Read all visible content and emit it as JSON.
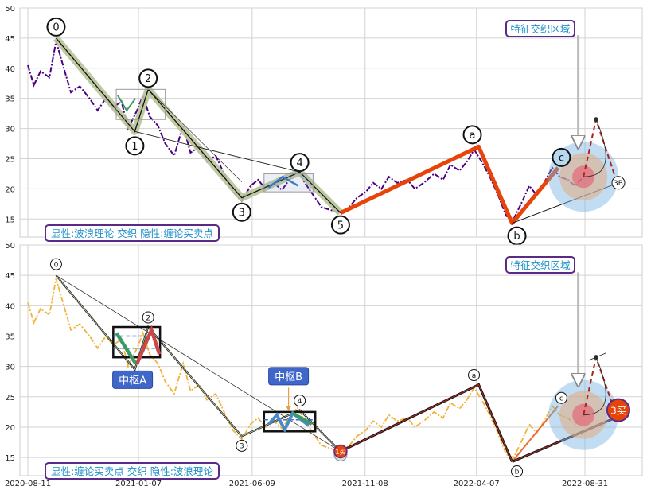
{
  "chart_data": [
    {
      "type": "line",
      "panel": "top",
      "ylim": [
        12,
        50
      ],
      "yticks": [
        15,
        20,
        25,
        30,
        35,
        40,
        45,
        50
      ],
      "xticks": [
        {
          "date": "2020-08-11",
          "label": "2020-08-11"
        },
        {
          "date": "2021-01-07",
          "label": "2021-01-07"
        },
        {
          "date": "2021-06-09",
          "label": "2021-06-09"
        },
        {
          "date": "2021-11-08",
          "label": "2021-11-08"
        },
        {
          "date": "2022-04-07",
          "label": "2022-04-07"
        },
        {
          "date": "2022-08-31",
          "label": "2022-08-31"
        }
      ],
      "xlim": [
        "2020-08-11",
        "2022-11-25"
      ],
      "grid": true,
      "price_series": [
        {
          "date": "2020-08-11",
          "value": 40.5
        },
        {
          "date": "2020-08-19",
          "value": 37.2
        },
        {
          "date": "2020-08-28",
          "value": 39.5
        },
        {
          "date": "2020-09-09",
          "value": 38.5
        },
        {
          "date": "2020-09-18",
          "value": 44.5
        },
        {
          "date": "2020-09-28",
          "value": 40.2
        },
        {
          "date": "2020-10-08",
          "value": 36.0
        },
        {
          "date": "2020-10-20",
          "value": 37.0
        },
        {
          "date": "2020-11-02",
          "value": 35.0
        },
        {
          "date": "2020-11-13",
          "value": 33.0
        },
        {
          "date": "2020-11-24",
          "value": 35.0
        },
        {
          "date": "2020-12-04",
          "value": 33.5
        },
        {
          "date": "2020-12-15",
          "value": 34.5
        },
        {
          "date": "2020-12-24",
          "value": 30.0
        },
        {
          "date": "2021-01-05",
          "value": 33.0
        },
        {
          "date": "2021-01-13",
          "value": 35.5
        },
        {
          "date": "2021-01-22",
          "value": 32.0
        },
        {
          "date": "2021-02-02",
          "value": 30.5
        },
        {
          "date": "2021-02-12",
          "value": 27.5
        },
        {
          "date": "2021-02-24",
          "value": 25.5
        },
        {
          "date": "2021-03-08",
          "value": 30.5
        },
        {
          "date": "2021-03-18",
          "value": 26.0
        },
        {
          "date": "2021-03-30",
          "value": 27.0
        },
        {
          "date": "2021-04-09",
          "value": 24.5
        },
        {
          "date": "2021-04-21",
          "value": 25.5
        },
        {
          "date": "2021-05-04",
          "value": 22.0
        },
        {
          "date": "2021-05-14",
          "value": 19.5
        },
        {
          "date": "2021-05-26",
          "value": 18.0
        },
        {
          "date": "2021-06-07",
          "value": 20.5
        },
        {
          "date": "2021-06-17",
          "value": 21.5
        },
        {
          "date": "2021-06-27",
          "value": 20.0
        },
        {
          "date": "2021-07-08",
          "value": 21.0
        },
        {
          "date": "2021-07-19",
          "value": 19.8
        },
        {
          "date": "2021-07-29",
          "value": 21.5
        },
        {
          "date": "2021-08-09",
          "value": 23.2
        },
        {
          "date": "2021-08-19",
          "value": 21.0
        },
        {
          "date": "2021-08-30",
          "value": 19.0
        },
        {
          "date": "2021-09-10",
          "value": 17.0
        },
        {
          "date": "2021-09-22",
          "value": 16.5
        },
        {
          "date": "2021-10-06",
          "value": 16.0
        },
        {
          "date": "2021-10-18",
          "value": 17.0
        },
        {
          "date": "2021-10-28",
          "value": 18.5
        },
        {
          "date": "2021-11-09",
          "value": 19.5
        },
        {
          "date": "2021-11-19",
          "value": 21.0
        },
        {
          "date": "2021-11-30",
          "value": 20.0
        },
        {
          "date": "2021-12-10",
          "value": 22.0
        },
        {
          "date": "2021-12-21",
          "value": 21.0
        },
        {
          "date": "2022-01-04",
          "value": 21.5
        },
        {
          "date": "2022-01-14",
          "value": 20.0
        },
        {
          "date": "2022-01-26",
          "value": 21.0
        },
        {
          "date": "2022-02-09",
          "value": 22.5
        },
        {
          "date": "2022-02-21",
          "value": 21.5
        },
        {
          "date": "2022-03-03",
          "value": 24.0
        },
        {
          "date": "2022-03-15",
          "value": 23.0
        },
        {
          "date": "2022-03-25",
          "value": 24.5
        },
        {
          "date": "2022-04-04",
          "value": 26.5
        },
        {
          "date": "2022-04-14",
          "value": 24.5
        },
        {
          "date": "2022-04-25",
          "value": 22.0
        },
        {
          "date": "2022-05-06",
          "value": 19.0
        },
        {
          "date": "2022-05-17",
          "value": 15.5
        },
        {
          "date": "2022-05-27",
          "value": 15.0
        },
        {
          "date": "2022-06-08",
          "value": 18.0
        },
        {
          "date": "2022-06-17",
          "value": 20.5
        },
        {
          "date": "2022-06-27",
          "value": 19.0
        },
        {
          "date": "2022-07-07",
          "value": 21.0
        },
        {
          "date": "2022-07-18",
          "value": 23.5
        },
        {
          "date": "2022-07-28",
          "value": 22.0
        },
        {
          "date": "2022-08-08",
          "value": 21.5
        },
        {
          "date": "2022-08-18",
          "value": 20.5
        },
        {
          "date": "2022-08-29",
          "value": 22.0
        }
      ],
      "wave_points": [
        {
          "label": "0",
          "date": "2020-09-18",
          "value": 45.0
        },
        {
          "label": "1",
          "date": "2021-01-02",
          "value": 29.5
        },
        {
          "label": "2",
          "date": "2021-01-20",
          "value": 36.5
        },
        {
          "label": "3",
          "date": "2021-05-26",
          "value": 18.5
        },
        {
          "label": "4",
          "date": "2021-08-12",
          "value": 22.8
        },
        {
          "label": "5",
          "date": "2021-10-06",
          "value": 16.0
        }
      ],
      "abc_points": [
        {
          "label": "a",
          "date": "2022-04-10",
          "value": 27.0
        },
        {
          "label": "b",
          "date": "2022-05-25",
          "value": 14.3
        },
        {
          "label": "c",
          "date": "2022-07-26",
          "value": 23.5
        }
      ],
      "third_buy_label": "3B",
      "title_box": "显性:波浪理论 交织 隐性:缠论买卖点",
      "annotation": "特征交织区域"
    },
    {
      "type": "line",
      "panel": "bottom",
      "ylim": [
        12,
        50
      ],
      "yticks": [
        15,
        20,
        25,
        30,
        35,
        40,
        45,
        50
      ],
      "xticks": [
        {
          "date": "2020-08-11",
          "label": "2020-08-11"
        },
        {
          "date": "2021-01-07",
          "label": "2021-01-07"
        },
        {
          "date": "2021-06-09",
          "label": "2021-06-09"
        },
        {
          "date": "2021-11-08",
          "label": "2021-11-08"
        },
        {
          "date": "2022-04-07",
          "label": "2022-04-07"
        },
        {
          "date": "2022-08-31",
          "label": "2022-08-31"
        }
      ],
      "xlim": [
        "2020-08-11",
        "2022-11-25"
      ],
      "grid": true,
      "wave_points": [
        {
          "label": "0",
          "date": "2020-09-18",
          "value": 45.0
        },
        {
          "label": "2",
          "date": "2021-01-20",
          "value": 36.5
        },
        {
          "label": "3",
          "date": "2021-05-26",
          "value": 18.5
        },
        {
          "label": "4",
          "date": "2021-08-12",
          "value": 22.8
        },
        {
          "label": "1买",
          "date": "2021-10-06",
          "value": 16.0
        }
      ],
      "abc_points": [
        {
          "label": "a",
          "date": "2022-04-10",
          "value": 27.0
        },
        {
          "label": "b",
          "date": "2022-05-25",
          "value": 14.3
        },
        {
          "label": "c",
          "date": "2022-07-26",
          "value": 23.5
        }
      ],
      "zhongshu_labels": [
        "中枢A",
        "中枢B"
      ],
      "third_buy_label": "3买",
      "title_box": "显性:缠论买卖点 交织 隐性:波浪理论",
      "annotation": "特征交织区域"
    }
  ],
  "colors": {
    "price_top": "#4b0082",
    "price_bottom": "#f0b43c",
    "wave_band": "#b8c49a",
    "abc_red": "#e8440a",
    "zs_label_bg": "#3f67c9",
    "box_border": "#5b2a86",
    "box_text": "#1e90c8",
    "buy_marker": "#e8440a"
  }
}
